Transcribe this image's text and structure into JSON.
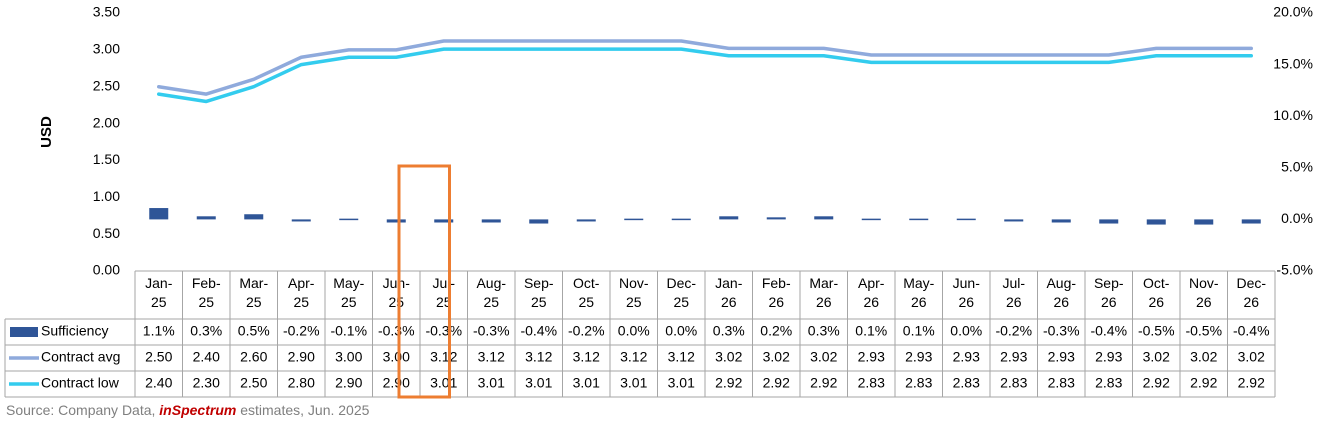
{
  "chart_data": {
    "type": "bar+line",
    "categories": [
      "Jan-25",
      "Feb-25",
      "Mar-25",
      "Apr-25",
      "May-25",
      "Jun-25",
      "Jul-25",
      "Aug-25",
      "Sep-25",
      "Oct-25",
      "Nov-25",
      "Dec-25",
      "Jan-26",
      "Feb-26",
      "Mar-26",
      "Apr-26",
      "May-26",
      "Jun-26",
      "Jul-26",
      "Aug-26",
      "Sep-26",
      "Oct-26",
      "Nov-26",
      "Dec-26"
    ],
    "category_lines": [
      [
        "Jan-",
        "25"
      ],
      [
        "Feb-",
        "25"
      ],
      [
        "Mar-",
        "25"
      ],
      [
        "Apr-",
        "25"
      ],
      [
        "May-",
        "25"
      ],
      [
        "Jun-",
        "25"
      ],
      [
        "Jul-",
        "25"
      ],
      [
        "Aug-",
        "25"
      ],
      [
        "Sep-",
        "25"
      ],
      [
        "Oct-",
        "25"
      ],
      [
        "Nov-",
        "25"
      ],
      [
        "Dec-",
        "25"
      ],
      [
        "Jan-",
        "26"
      ],
      [
        "Feb-",
        "26"
      ],
      [
        "Mar-",
        "26"
      ],
      [
        "Apr-",
        "26"
      ],
      [
        "May-",
        "26"
      ],
      [
        "Jun-",
        "26"
      ],
      [
        "Jul-",
        "26"
      ],
      [
        "Aug-",
        "26"
      ],
      [
        "Sep-",
        "26"
      ],
      [
        "Oct-",
        "26"
      ],
      [
        "Nov-",
        "26"
      ],
      [
        "Dec-",
        "26"
      ]
    ],
    "ylabel": "USD",
    "y_ticks": [
      "3.50",
      "3.00",
      "2.50",
      "2.00",
      "1.50",
      "1.00",
      "0.50",
      "0.00"
    ],
    "y_range": [
      0,
      3.5
    ],
    "y2_ticks": [
      "20.0%",
      "15.0%",
      "10.0%",
      "5.0%",
      "0.0%",
      "-5.0%"
    ],
    "y2_range": [
      -5,
      20
    ],
    "series": [
      {
        "name": "Sufficiency",
        "kind": "bar",
        "axis": "secondary",
        "color": "#2f5597",
        "values": [
          1.1,
          0.3,
          0.5,
          -0.2,
          -0.1,
          -0.3,
          -0.3,
          -0.3,
          -0.4,
          -0.2,
          0.0,
          0.0,
          0.3,
          0.2,
          0.3,
          0.1,
          0.1,
          0.0,
          -0.2,
          -0.3,
          -0.4,
          -0.5,
          -0.5,
          -0.4
        ],
        "labels": [
          "1.1%",
          "0.3%",
          "0.5%",
          "-0.2%",
          "-0.1%",
          "-0.3%",
          "-0.3%",
          "-0.3%",
          "-0.4%",
          "-0.2%",
          "0.0%",
          "0.0%",
          "0.3%",
          "0.2%",
          "0.3%",
          "0.1%",
          "0.1%",
          "0.0%",
          "-0.2%",
          "-0.3%",
          "-0.4%",
          "-0.5%",
          "-0.5%",
          "-0.4%"
        ]
      },
      {
        "name": "Contract avg",
        "kind": "line",
        "axis": "primary",
        "color": "#8faadc",
        "values": [
          2.5,
          2.4,
          2.6,
          2.9,
          3.0,
          3.0,
          3.12,
          3.12,
          3.12,
          3.12,
          3.12,
          3.12,
          3.02,
          3.02,
          3.02,
          2.93,
          2.93,
          2.93,
          2.93,
          2.93,
          2.93,
          3.02,
          3.02,
          3.02
        ],
        "labels": [
          "2.50",
          "2.40",
          "2.60",
          "2.90",
          "3.00",
          "3.00",
          "3.12",
          "3.12",
          "3.12",
          "3.12",
          "3.12",
          "3.12",
          "3.02",
          "3.02",
          "3.02",
          "2.93",
          "2.93",
          "2.93",
          "2.93",
          "2.93",
          "2.93",
          "3.02",
          "3.02",
          "3.02"
        ]
      },
      {
        "name": "Contract low",
        "kind": "line",
        "axis": "primary",
        "color": "#33ccee",
        "values": [
          2.4,
          2.3,
          2.5,
          2.8,
          2.9,
          2.9,
          3.01,
          3.01,
          3.01,
          3.01,
          3.01,
          3.01,
          2.92,
          2.92,
          2.92,
          2.83,
          2.83,
          2.83,
          2.83,
          2.83,
          2.83,
          2.92,
          2.92,
          2.92
        ],
        "labels": [
          "2.40",
          "2.30",
          "2.50",
          "2.80",
          "2.90",
          "2.90",
          "3.01",
          "3.01",
          "3.01",
          "3.01",
          "3.01",
          "3.01",
          "2.92",
          "2.92",
          "2.92",
          "2.83",
          "2.83",
          "2.83",
          "2.83",
          "2.83",
          "2.83",
          "2.92",
          "2.92",
          "2.92"
        ]
      }
    ],
    "highlight": {
      "category": "Jul-25",
      "color": "#ed7d31"
    },
    "grid": false,
    "legend": "data-table"
  },
  "source": {
    "prefix": "Source: Company Data, ",
    "brand_in": "in",
    "brand_rest": "Spectrum",
    "suffix": " estimates, Jun. 2025"
  }
}
